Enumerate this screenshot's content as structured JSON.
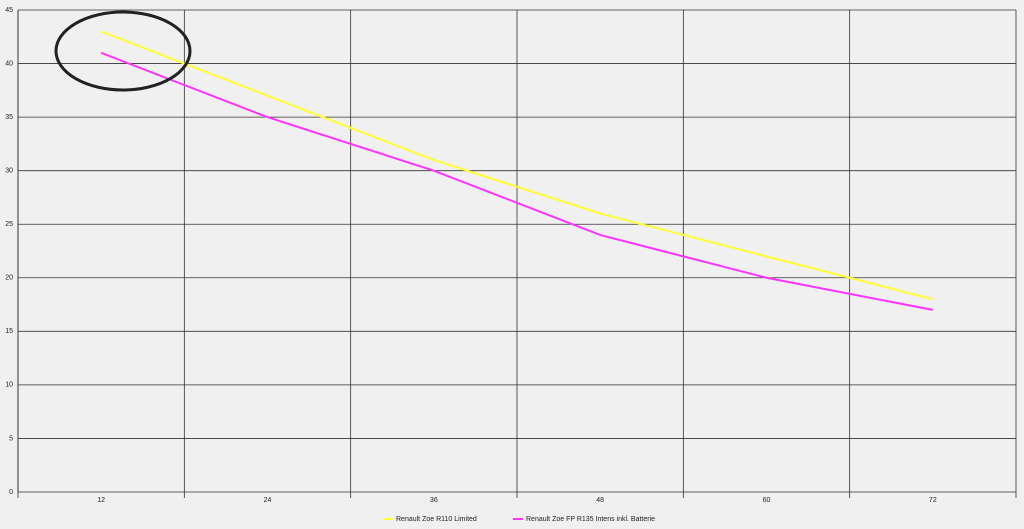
{
  "chart_data": {
    "type": "line",
    "categories": [
      "12",
      "24",
      "36",
      "48",
      "60",
      "72"
    ],
    "series": [
      {
        "name": "Renault Zoe R110 Limited",
        "color": "#ffff33",
        "values": [
          43,
          37,
          31,
          26,
          22,
          18
        ]
      },
      {
        "name": "Renault Zoe FP R135 Intens inkl. Batterie",
        "color": "#ff33ff",
        "values": [
          41,
          35,
          30,
          24,
          20,
          17
        ]
      }
    ],
    "ylim": [
      0,
      45
    ],
    "yticks": [
      0,
      5,
      10,
      15,
      20,
      25,
      30,
      35,
      40,
      45
    ],
    "grid": true,
    "legend": "bottom"
  }
}
